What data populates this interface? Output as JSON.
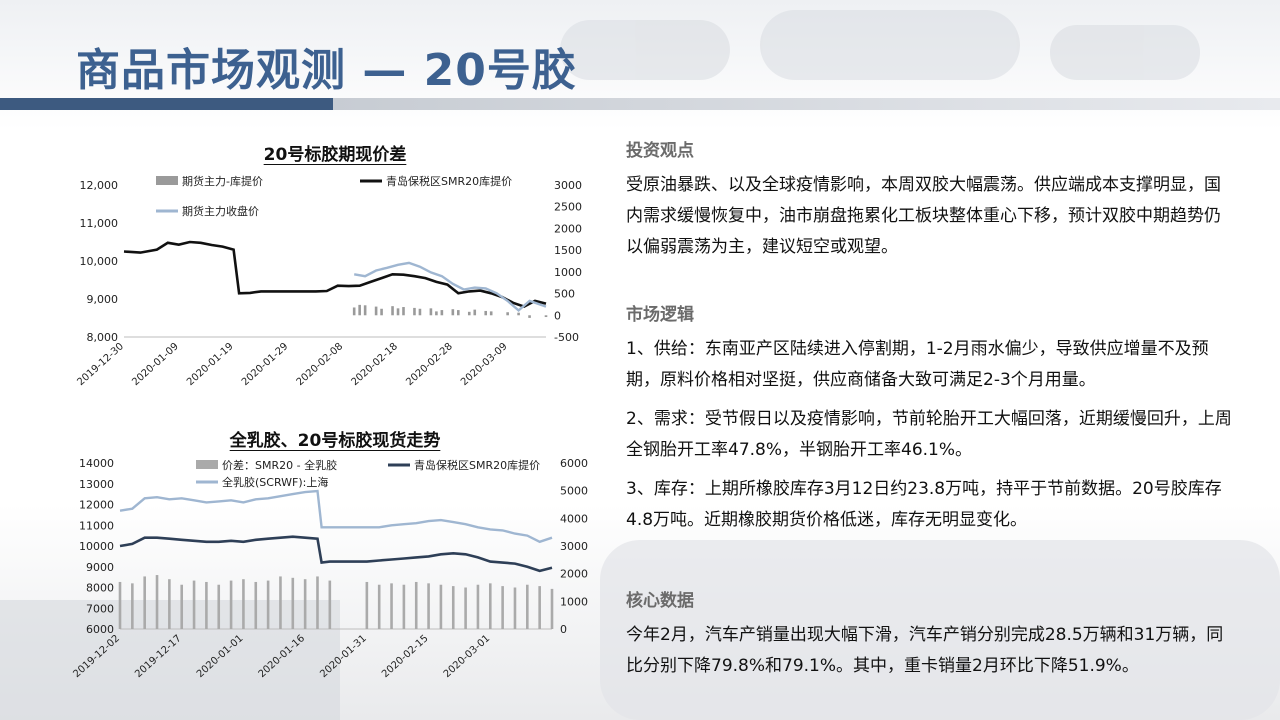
{
  "header": {
    "title": "商品市场观测 — 20号胶"
  },
  "chart_data": [
    {
      "type": "line",
      "title": "20号标胶期现价差",
      "legend": [
        "期货主力-库提价",
        "青岛保税区SMR20库提价",
        "期货主力收盘价"
      ],
      "x_ticks": [
        "2019-12-30",
        "2020-01-09",
        "2020-01-19",
        "2020-01-29",
        "2020-02-08",
        "2020-02-18",
        "2020-02-28",
        "2020-03-09"
      ],
      "y_left_ticks": [
        "12,000",
        "11,000",
        "10,000",
        "9,000",
        "8,000"
      ],
      "y_right_ticks": [
        "3000",
        "2500",
        "2000",
        "1500",
        "1000",
        "500",
        "0",
        "-500"
      ],
      "ylim_left": [
        8000,
        12000
      ],
      "ylim_right": [
        -500,
        3000
      ],
      "series": [
        {
          "name": "青岛保税区SMR20库提价",
          "axis": "left",
          "color": "#111111",
          "x": [
            "2019-12-30",
            "2020-01-02",
            "2020-01-05",
            "2020-01-07",
            "2020-01-09",
            "2020-01-11",
            "2020-01-13",
            "2020-01-15",
            "2020-01-17",
            "2020-01-19",
            "2020-01-20",
            "2020-01-22",
            "2020-01-24",
            "2020-02-03",
            "2020-02-05",
            "2020-02-07",
            "2020-02-09",
            "2020-02-11",
            "2020-02-13",
            "2020-02-15",
            "2020-02-17",
            "2020-02-19",
            "2020-02-21",
            "2020-02-23",
            "2020-02-25",
            "2020-02-27",
            "2020-02-29",
            "2020-03-02",
            "2020-03-04",
            "2020-03-06",
            "2020-03-08",
            "2020-03-10",
            "2020-03-12",
            "2020-03-14",
            "2020-03-16"
          ],
          "values": [
            10250,
            10220,
            10300,
            10480,
            10430,
            10500,
            10480,
            10420,
            10380,
            10300,
            9150,
            9160,
            9200,
            9200,
            9210,
            9350,
            9340,
            9350,
            9450,
            9550,
            9650,
            9640,
            9600,
            9550,
            9450,
            9380,
            9150,
            9200,
            9220,
            9150,
            9050,
            8900,
            8800,
            8950,
            8880
          ]
        },
        {
          "name": "期货主力收盘价",
          "axis": "left",
          "color": "#9fb6d1",
          "x": [
            "2020-02-10",
            "2020-02-12",
            "2020-02-14",
            "2020-02-16",
            "2020-02-18",
            "2020-02-20",
            "2020-02-22",
            "2020-02-24",
            "2020-02-26",
            "2020-02-28",
            "2020-03-01",
            "2020-03-03",
            "2020-03-05",
            "2020-03-07",
            "2020-03-09",
            "2020-03-11",
            "2020-03-13",
            "2020-03-16"
          ],
          "values": [
            9650,
            9600,
            9750,
            9820,
            9900,
            9950,
            9850,
            9700,
            9600,
            9400,
            9250,
            9300,
            9280,
            9150,
            8950,
            8700,
            8950,
            8800
          ]
        },
        {
          "name": "期货主力-库提价",
          "axis": "right",
          "type": "bar",
          "color": "#9a9a9a",
          "x": [
            "2020-02-10",
            "2020-02-11",
            "2020-02-12",
            "2020-02-14",
            "2020-02-15",
            "2020-02-17",
            "2020-02-18",
            "2020-02-19",
            "2020-02-21",
            "2020-02-22",
            "2020-02-24",
            "2020-02-25",
            "2020-02-26",
            "2020-02-28",
            "2020-02-29",
            "2020-03-02",
            "2020-03-03",
            "2020-03-05",
            "2020-03-06",
            "2020-03-09",
            "2020-03-11",
            "2020-03-13",
            "2020-03-16"
          ],
          "values": [
            180,
            240,
            230,
            200,
            150,
            210,
            160,
            190,
            170,
            150,
            160,
            90,
            120,
            140,
            120,
            80,
            130,
            100,
            90,
            70,
            60,
            -60,
            -40
          ]
        }
      ]
    },
    {
      "type": "line",
      "title": "全乳胶、20号标胶现货走势",
      "legend": [
        "价差：SMR20 - 全乳胶",
        "青岛保税区SMR20库提价",
        "全乳胶(SCRWF):上海"
      ],
      "x_ticks": [
        "2019-12-02",
        "2019-12-17",
        "2020-01-01",
        "2020-01-16",
        "2020-01-31",
        "2020-02-15",
        "2020-03-01"
      ],
      "y_left_ticks": [
        "14000",
        "13000",
        "12000",
        "11000",
        "10000",
        "9000",
        "8000",
        "7000",
        "6000"
      ],
      "y_right_ticks": [
        "6000",
        "5000",
        "4000",
        "3000",
        "2000",
        "1000",
        "0"
      ],
      "ylim_left": [
        6000,
        14000
      ],
      "ylim_right": [
        0,
        6000
      ],
      "series": [
        {
          "name": "全乳胶(SCRWF):上海",
          "axis": "left",
          "color": "#9fb6d1",
          "x": [
            "2019-12-02",
            "2019-12-05",
            "2019-12-08",
            "2019-12-11",
            "2019-12-14",
            "2019-12-17",
            "2019-12-20",
            "2019-12-23",
            "2019-12-26",
            "2019-12-29",
            "2020-01-01",
            "2020-01-04",
            "2020-01-07",
            "2020-01-10",
            "2020-01-13",
            "2020-01-16",
            "2020-01-19",
            "2020-01-20",
            "2020-01-22",
            "2020-01-31",
            "2020-02-03",
            "2020-02-06",
            "2020-02-09",
            "2020-02-12",
            "2020-02-15",
            "2020-02-18",
            "2020-02-21",
            "2020-02-24",
            "2020-02-27",
            "2020-03-01",
            "2020-03-04",
            "2020-03-07",
            "2020-03-10",
            "2020-03-13",
            "2020-03-16"
          ],
          "values": [
            11700,
            11800,
            12300,
            12350,
            12250,
            12300,
            12200,
            12100,
            12150,
            12200,
            12100,
            12250,
            12300,
            12400,
            12500,
            12600,
            12650,
            10900,
            10900,
            10900,
            10900,
            11000,
            11050,
            11100,
            11200,
            11250,
            11150,
            11050,
            10900,
            10800,
            10750,
            10600,
            10500,
            10200,
            10400
          ]
        },
        {
          "name": "青岛保税区SMR20库提价",
          "axis": "left",
          "color": "#2e3f57",
          "x": [
            "2019-12-02",
            "2019-12-05",
            "2019-12-08",
            "2019-12-11",
            "2019-12-14",
            "2019-12-17",
            "2019-12-20",
            "2019-12-23",
            "2019-12-26",
            "2019-12-29",
            "2020-01-01",
            "2020-01-04",
            "2020-01-07",
            "2020-01-10",
            "2020-01-13",
            "2020-01-16",
            "2020-01-19",
            "2020-01-20",
            "2020-01-22",
            "2020-01-31",
            "2020-02-03",
            "2020-02-06",
            "2020-02-09",
            "2020-02-12",
            "2020-02-15",
            "2020-02-18",
            "2020-02-21",
            "2020-02-24",
            "2020-02-27",
            "2020-03-01",
            "2020-03-04",
            "2020-03-07",
            "2020-03-10",
            "2020-03-13",
            "2020-03-16"
          ],
          "values": [
            10000,
            10100,
            10400,
            10400,
            10350,
            10300,
            10250,
            10200,
            10200,
            10250,
            10200,
            10300,
            10350,
            10400,
            10450,
            10400,
            10350,
            9200,
            9250,
            9250,
            9300,
            9350,
            9400,
            9450,
            9500,
            9600,
            9650,
            9600,
            9450,
            9250,
            9200,
            9150,
            9000,
            8800,
            8950
          ]
        },
        {
          "name": "价差：SMR20 - 全乳胶",
          "axis": "right",
          "type": "bar",
          "color": "#aaaaaa",
          "x": [
            "2019-12-02",
            "2019-12-05",
            "2019-12-08",
            "2019-12-11",
            "2019-12-14",
            "2019-12-17",
            "2019-12-20",
            "2019-12-23",
            "2019-12-26",
            "2019-12-29",
            "2020-01-01",
            "2020-01-04",
            "2020-01-07",
            "2020-01-10",
            "2020-01-13",
            "2020-01-16",
            "2020-01-19",
            "2020-01-22",
            "2020-01-31",
            "2020-02-03",
            "2020-02-06",
            "2020-02-09",
            "2020-02-12",
            "2020-02-15",
            "2020-02-18",
            "2020-02-21",
            "2020-02-24",
            "2020-02-27",
            "2020-03-01",
            "2020-03-04",
            "2020-03-07",
            "2020-03-10",
            "2020-03-13",
            "2020-03-16"
          ],
          "values": [
            1700,
            1650,
            1900,
            1950,
            1800,
            1600,
            1750,
            1700,
            1600,
            1750,
            1800,
            1700,
            1750,
            1900,
            1850,
            1800,
            1900,
            1750,
            1700,
            1600,
            1650,
            1600,
            1700,
            1650,
            1600,
            1550,
            1500,
            1600,
            1650,
            1550,
            1500,
            1600,
            1550,
            1450
          ]
        }
      ]
    }
  ],
  "sections": [
    {
      "heading": "投资观点",
      "paragraphs": [
        "受原油暴跌、以及全球疫情影响，本周双胶大幅震荡。供应端成本支撑明显，国内需求缓慢恢复中，油市崩盘拖累化工板块整体重心下移，预计双胶中期趋势仍以偏弱震荡为主，建议短空或观望。"
      ]
    },
    {
      "heading": "市场逻辑",
      "paragraphs": [
        "1、供给：东南亚产区陆续进入停割期，1-2月雨水偏少，导致供应增量不及预期，原料价格相对坚挺，供应商储备大致可满足2-3个月用量。",
        "2、需求：受节假日以及疫情影响，节前轮胎开工大幅回落，近期缓慢回升，上周全钢胎开工率47.8%，半钢胎开工率46.1%。",
        "3、库存：上期所橡胶库存3月12日约23.8万吨，持平于节前数据。20号胶库存4.8万吨。近期橡胶期货价格低迷，库存无明显变化。"
      ]
    },
    {
      "heading": "核心数据",
      "paragraphs": [
        "今年2月，汽车产销量出现大幅下滑，汽车产销分别完成28.5万辆和31万辆，同比分别下降79.8%和79.1%。其中，重卡销量2月环比下降51.9%。"
      ]
    }
  ]
}
